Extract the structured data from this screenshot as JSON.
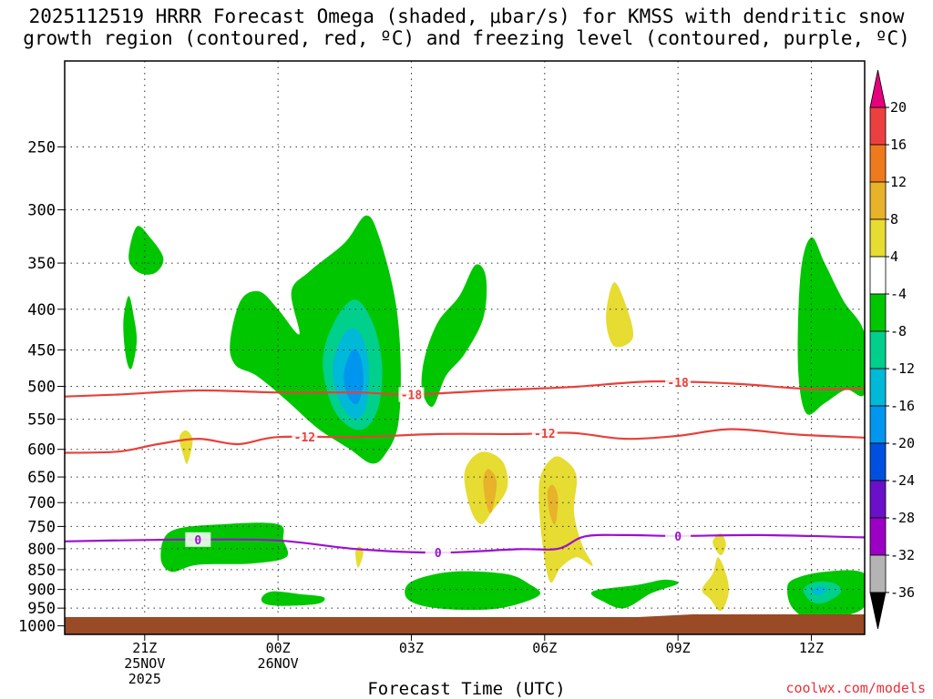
{
  "chart_data": {
    "type": "contour",
    "title_line1": "2025112519 HRRR Forecast Omega (shaded, μbar/s) for KMSS with dendritic snow",
    "title_line2": "growth region (contoured, red, ºC) and freezing level (contoured, purple, ºC)",
    "xlabel": "Forecast Time (UTC)",
    "credit": "coolwx.com/models",
    "x_range_hours": [
      -2,
      28
    ],
    "x_ticks": [
      {
        "h": 1,
        "l1": "21Z",
        "l2": "25NOV",
        "l3": "2025"
      },
      {
        "h": 6,
        "l1": "00Z",
        "l2": "26NOV",
        "l3": ""
      },
      {
        "h": 11,
        "l1": "03Z",
        "l2": "",
        "l3": ""
      },
      {
        "h": 16,
        "l1": "06Z",
        "l2": "",
        "l3": ""
      },
      {
        "h": 21,
        "l1": "09Z",
        "l2": "",
        "l3": ""
      },
      {
        "h": 26,
        "l1": "12Z",
        "l2": "",
        "l3": ""
      }
    ],
    "y_range_hpa": [
      1000,
      200
    ],
    "y_ticks": [
      250,
      300,
      350,
      400,
      450,
      500,
      550,
      600,
      650,
      700,
      750,
      800,
      850,
      900,
      950,
      1000
    ],
    "grid": true,
    "colorbar": {
      "labels": [
        "20",
        "16",
        "12",
        "8",
        "4",
        "-4",
        "-8",
        "-12",
        "-16",
        "-20",
        "-24",
        "-28",
        "-32",
        "-36"
      ],
      "bin_colors": [
        "#ec4040",
        "#ee7a1e",
        "#e8b22a",
        "#e6dc32",
        "#ffffff",
        "#00c600",
        "#00d08c",
        "#00b8d8",
        "#0096f0",
        "#0050e0",
        "#6a10c8",
        "#9c00c4",
        "#b4b4b4"
      ],
      "top_cap_color": "#e6007e",
      "bottom_cap_color": "#000000"
    },
    "contour_lines": [
      {
        "label": "-18",
        "color": "#e8403a",
        "label_h": [
          11,
          21
        ],
        "points": [
          [
            -2,
            515
          ],
          [
            0,
            512
          ],
          [
            3,
            506
          ],
          [
            6,
            509
          ],
          [
            9,
            509
          ],
          [
            11,
            512
          ],
          [
            14,
            506
          ],
          [
            17,
            501
          ],
          [
            20,
            493
          ],
          [
            23,
            496
          ],
          [
            26,
            504
          ],
          [
            28,
            503
          ]
        ]
      },
      {
        "label": "-12",
        "color": "#e8403a",
        "label_h": [
          7,
          16
        ],
        "points": [
          [
            -2,
            606
          ],
          [
            0,
            604
          ],
          [
            1.5,
            591
          ],
          [
            3,
            582
          ],
          [
            4.5,
            591
          ],
          [
            6,
            579
          ],
          [
            9,
            579
          ],
          [
            12,
            574
          ],
          [
            15,
            574
          ],
          [
            17,
            572
          ],
          [
            19,
            582
          ],
          [
            21,
            577
          ],
          [
            23,
            566
          ],
          [
            25.5,
            575
          ],
          [
            28,
            580
          ]
        ]
      },
      {
        "label": "0",
        "color": "#9c10d0",
        "label_h": [
          3,
          12,
          21
        ],
        "points": [
          [
            -2,
            783
          ],
          [
            1,
            780
          ],
          [
            3,
            779
          ],
          [
            6,
            781
          ],
          [
            9,
            801
          ],
          [
            12,
            809
          ],
          [
            15,
            801
          ],
          [
            16.5,
            800
          ],
          [
            17.5,
            772
          ],
          [
            19,
            769
          ],
          [
            21,
            771
          ],
          [
            24,
            769
          ],
          [
            28,
            774
          ]
        ]
      }
    ],
    "filled_regions": [
      {
        "name": "-4",
        "color": "#00c600",
        "points": [
          [
            0.4,
            345
          ],
          [
            0.7,
            315
          ],
          [
            1.2,
            325
          ],
          [
            1.7,
            345
          ],
          [
            1.4,
            360
          ],
          [
            0.8,
            360
          ]
        ]
      },
      {
        "name": "-4",
        "color": "#00c600",
        "points": [
          [
            0.2,
            415
          ],
          [
            0.4,
            385
          ],
          [
            0.6,
            410
          ],
          [
            0.7,
            440
          ],
          [
            0.5,
            475
          ],
          [
            0.3,
            460
          ]
        ]
      },
      {
        "name": "-4",
        "color": "#00c600",
        "points": [
          [
            4.2,
            440
          ],
          [
            4.6,
            390
          ],
          [
            5.3,
            380
          ],
          [
            6.0,
            400
          ],
          [
            6.8,
            430
          ],
          [
            6.5,
            380
          ],
          [
            7.2,
            358
          ],
          [
            8.5,
            330
          ],
          [
            9.3,
            305
          ],
          [
            9.8,
            325
          ],
          [
            10.4,
            390
          ],
          [
            10.6,
            470
          ],
          [
            10.5,
            560
          ],
          [
            10.0,
            610
          ],
          [
            9.5,
            625
          ],
          [
            8.7,
            600
          ],
          [
            7.5,
            565
          ],
          [
            6.3,
            520
          ],
          [
            5.2,
            485
          ],
          [
            4.4,
            470
          ]
        ]
      },
      {
        "name": "-8",
        "color": "#00d08c",
        "points": [
          [
            7.8,
            440
          ],
          [
            8.4,
            400
          ],
          [
            9.0,
            390
          ],
          [
            9.6,
            420
          ],
          [
            9.9,
            470
          ],
          [
            9.8,
            525
          ],
          [
            9.4,
            560
          ],
          [
            8.8,
            565
          ],
          [
            8.1,
            535
          ],
          [
            7.7,
            480
          ]
        ]
      },
      {
        "name": "-12",
        "color": "#00b8d8",
        "points": [
          [
            8.1,
            460
          ],
          [
            8.6,
            425
          ],
          [
            9.1,
            430
          ],
          [
            9.4,
            470
          ],
          [
            9.3,
            530
          ],
          [
            8.9,
            550
          ],
          [
            8.4,
            530
          ],
          [
            8.1,
            495
          ]
        ]
      },
      {
        "name": "-16",
        "color": "#0096f0",
        "points": [
          [
            8.5,
            475
          ],
          [
            8.8,
            450
          ],
          [
            9.1,
            460
          ],
          [
            9.2,
            495
          ],
          [
            9.0,
            525
          ],
          [
            8.7,
            520
          ],
          [
            8.5,
            500
          ]
        ]
      },
      {
        "name": "-4",
        "color": "#00c600",
        "points": [
          [
            11.5,
            460
          ],
          [
            12.0,
            415
          ],
          [
            12.8,
            385
          ],
          [
            13.4,
            352
          ],
          [
            13.8,
            365
          ],
          [
            13.7,
            410
          ],
          [
            13.0,
            455
          ],
          [
            12.3,
            485
          ],
          [
            11.8,
            530
          ],
          [
            11.4,
            505
          ]
        ]
      },
      {
        "name": "-4",
        "color": "#00c600",
        "points": [
          [
            25.6,
            360
          ],
          [
            26.0,
            325
          ],
          [
            26.5,
            350
          ],
          [
            27.2,
            390
          ],
          [
            28.0,
            430
          ],
          [
            28.0,
            510
          ],
          [
            27.3,
            505
          ],
          [
            26.5,
            525
          ],
          [
            25.8,
            540
          ],
          [
            25.5,
            470
          ]
        ]
      },
      {
        "name": "-4",
        "color": "#00c600",
        "points": [
          [
            2.0,
            760
          ],
          [
            4.0,
            745
          ],
          [
            6.0,
            745
          ],
          [
            6.2,
            780
          ],
          [
            6.3,
            820
          ],
          [
            5.0,
            835
          ],
          [
            3.0,
            838
          ],
          [
            2.0,
            855
          ],
          [
            1.6,
            820
          ]
        ]
      },
      {
        "name": "-4",
        "color": "#00c600",
        "points": [
          [
            5.4,
            920
          ],
          [
            5.8,
            905
          ],
          [
            6.8,
            912
          ],
          [
            7.7,
            920
          ],
          [
            7.5,
            938
          ],
          [
            6.2,
            944
          ],
          [
            5.5,
            938
          ]
        ]
      },
      {
        "name": "-4",
        "color": "#00c600",
        "points": [
          [
            11.0,
            880
          ],
          [
            12.5,
            855
          ],
          [
            14.5,
            860
          ],
          [
            15.4,
            885
          ],
          [
            15.8,
            915
          ],
          [
            14.5,
            948
          ],
          [
            13.0,
            955
          ],
          [
            11.5,
            945
          ],
          [
            10.8,
            920
          ]
        ]
      },
      {
        "name": "-4",
        "color": "#00c600",
        "points": [
          [
            17.8,
            905
          ],
          [
            19.5,
            888
          ],
          [
            20.5,
            875
          ],
          [
            21.0,
            885
          ],
          [
            20.0,
            910
          ],
          [
            19.0,
            950
          ],
          [
            18.2,
            932
          ]
        ]
      },
      {
        "name": "-4",
        "color": "#00c600",
        "points": [
          [
            25.3,
            875
          ],
          [
            26.5,
            855
          ],
          [
            28.0,
            860
          ],
          [
            28.0,
            945
          ],
          [
            27.0,
            975
          ],
          [
            26.0,
            985
          ],
          [
            25.3,
            950
          ],
          [
            25.1,
            905
          ]
        ]
      },
      {
        "name": "-8",
        "color": "#00d08c",
        "points": [
          [
            25.7,
            900
          ],
          [
            26.2,
            880
          ],
          [
            26.9,
            885
          ],
          [
            27.1,
            908
          ],
          [
            26.5,
            935
          ],
          [
            26.0,
            932
          ]
        ]
      },
      {
        "name": "-12",
        "color": "#00b8d8",
        "points": [
          [
            26.0,
            905
          ],
          [
            26.3,
            892
          ],
          [
            26.6,
            900
          ],
          [
            26.3,
            915
          ]
        ]
      },
      {
        "name": "4",
        "color": "#e6dc32",
        "points": [
          [
            2.3,
            580
          ],
          [
            2.55,
            568
          ],
          [
            2.8,
            585
          ],
          [
            2.6,
            625
          ],
          [
            2.45,
            610
          ]
        ]
      },
      {
        "name": "4",
        "color": "#e6dc32",
        "points": [
          [
            8.9,
            808
          ],
          [
            9.05,
            795
          ],
          [
            9.2,
            810
          ],
          [
            9.0,
            845
          ]
        ]
      },
      {
        "name": "4",
        "color": "#e6dc32",
        "points": [
          [
            13.0,
            640
          ],
          [
            13.6,
            605
          ],
          [
            14.4,
            620
          ],
          [
            14.6,
            670
          ],
          [
            14.0,
            720
          ],
          [
            13.6,
            745
          ],
          [
            13.2,
            710
          ]
        ]
      },
      {
        "name": "8",
        "color": "#e8b22a",
        "points": [
          [
            13.7,
            655
          ],
          [
            13.9,
            635
          ],
          [
            14.2,
            660
          ],
          [
            14.0,
            720
          ],
          [
            13.8,
            700
          ]
        ]
      },
      {
        "name": "4",
        "color": "#e6dc32",
        "points": [
          [
            15.8,
            660
          ],
          [
            16.3,
            615
          ],
          [
            16.8,
            620
          ],
          [
            17.2,
            650
          ],
          [
            17.1,
            720
          ],
          [
            17.4,
            790
          ],
          [
            17.8,
            840
          ],
          [
            17.2,
            820
          ],
          [
            16.6,
            845
          ],
          [
            16.2,
            880
          ],
          [
            15.9,
            780
          ]
        ]
      },
      {
        "name": "8",
        "color": "#e8b22a",
        "points": [
          [
            16.1,
            680
          ],
          [
            16.3,
            665
          ],
          [
            16.5,
            690
          ],
          [
            16.4,
            745
          ],
          [
            16.2,
            725
          ]
        ]
      },
      {
        "name": "4",
        "color": "#e6dc32",
        "points": [
          [
            18.3,
            410
          ],
          [
            18.6,
            370
          ],
          [
            19.1,
            400
          ],
          [
            19.3,
            435
          ],
          [
            18.6,
            445
          ]
        ]
      },
      {
        "name": "4",
        "color": "#e6dc32",
        "points": [
          [
            22.3,
            785
          ],
          [
            22.6,
            765
          ],
          [
            22.8,
            790
          ],
          [
            22.6,
            815
          ]
        ]
      },
      {
        "name": "4",
        "color": "#e6dc32",
        "points": [
          [
            22.3,
            860
          ],
          [
            22.5,
            820
          ],
          [
            22.8,
            860
          ],
          [
            22.9,
            910
          ],
          [
            22.6,
            958
          ],
          [
            22.2,
            925
          ],
          [
            21.9,
            900
          ]
        ]
      }
    ]
  }
}
